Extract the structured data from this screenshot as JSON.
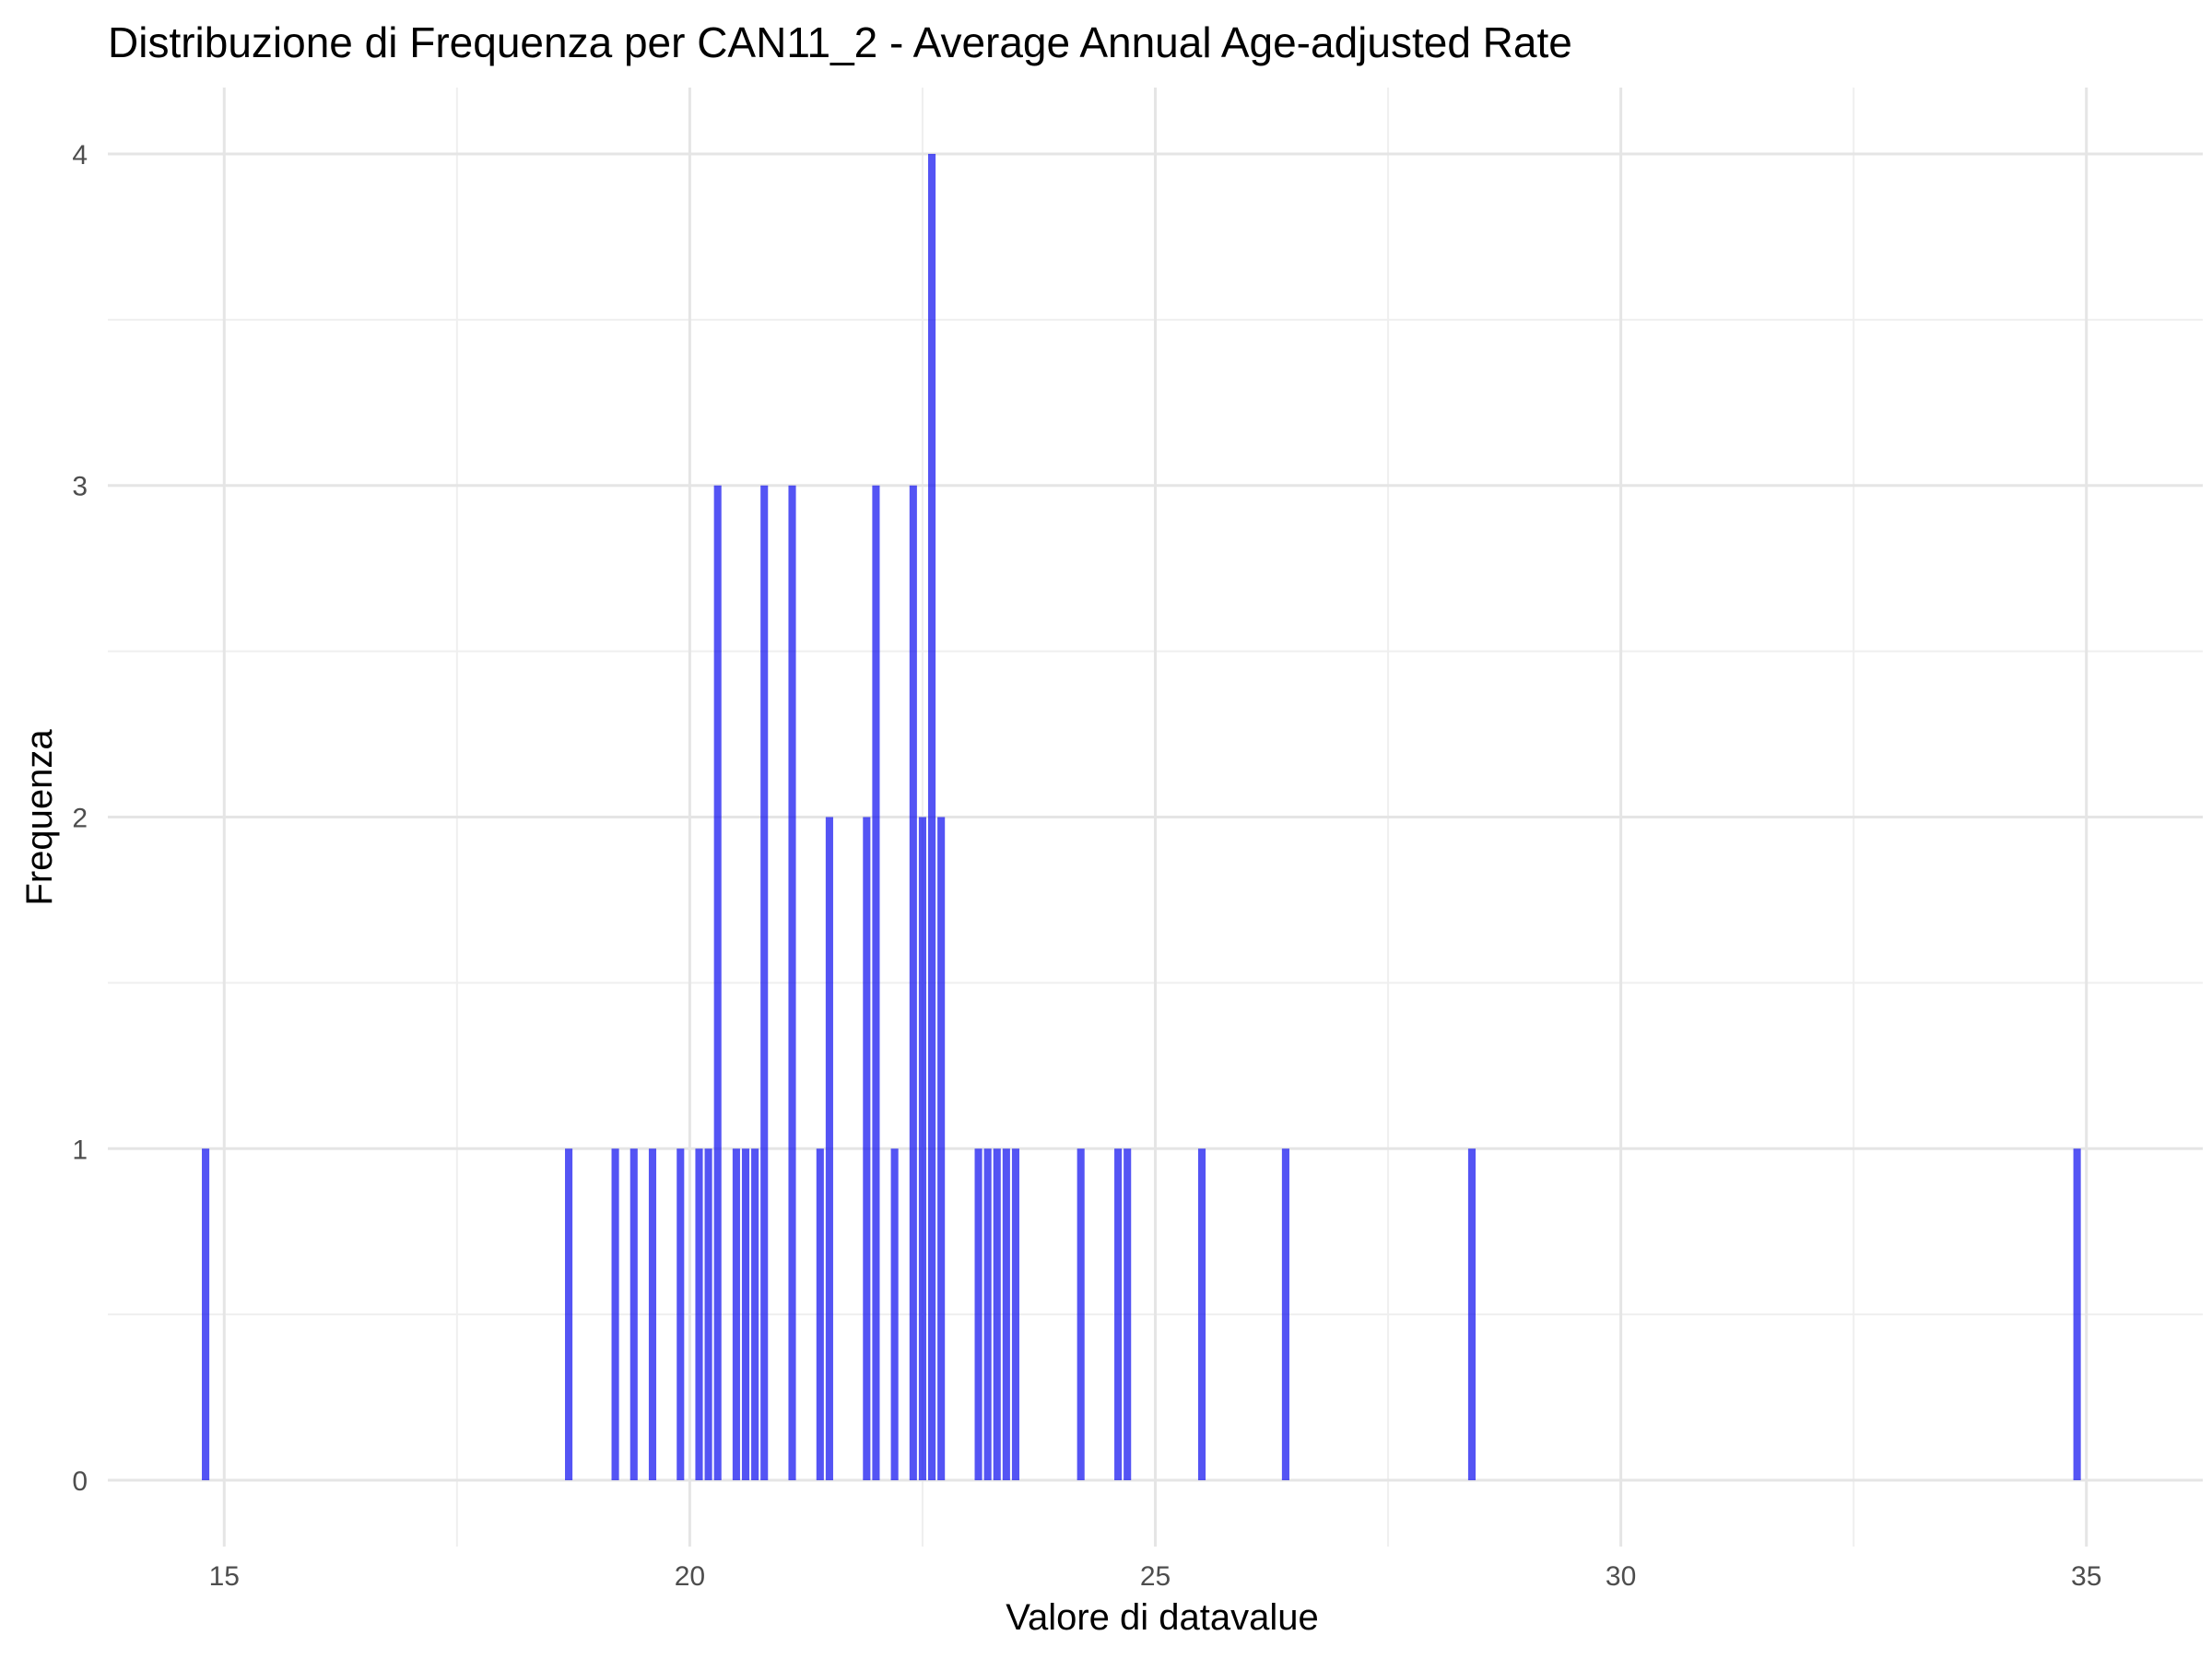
{
  "chart_data": {
    "type": "bar",
    "title": "Distribuzione di Frequenza per CAN11_2 - Average Annual Age-adjusted Rate",
    "xlabel": "Valore di datavalue",
    "ylabel": "Frequenza",
    "xlim": [
      13.75,
      36.25
    ],
    "ylim": [
      -0.2,
      4.2
    ],
    "xticks": [
      15,
      20,
      25,
      30,
      35
    ],
    "yticks": [
      0,
      1,
      2,
      3,
      4
    ],
    "grid": true,
    "legend": "none",
    "bar_color": "#0000ee",
    "bar_opacity": 0.67,
    "bin_width": 0.1,
    "x": [
      14.8,
      18.7,
      19.2,
      19.4,
      19.6,
      19.9,
      20.1,
      20.2,
      20.3,
      20.5,
      20.6,
      20.7,
      20.8,
      21.1,
      21.4,
      21.5,
      21.9,
      22.0,
      22.2,
      22.4,
      22.5,
      22.6,
      22.7,
      23.1,
      23.2,
      23.3,
      23.4,
      23.5,
      24.2,
      24.6,
      24.7,
      25.5,
      26.4,
      28.4,
      34.9
    ],
    "values": [
      1,
      1,
      1,
      1,
      1,
      1,
      1,
      1,
      3,
      1,
      1,
      1,
      3,
      3,
      1,
      2,
      2,
      3,
      1,
      3,
      2,
      4,
      2,
      1,
      1,
      1,
      1,
      1,
      1,
      1,
      1,
      1,
      1,
      1,
      1
    ]
  }
}
